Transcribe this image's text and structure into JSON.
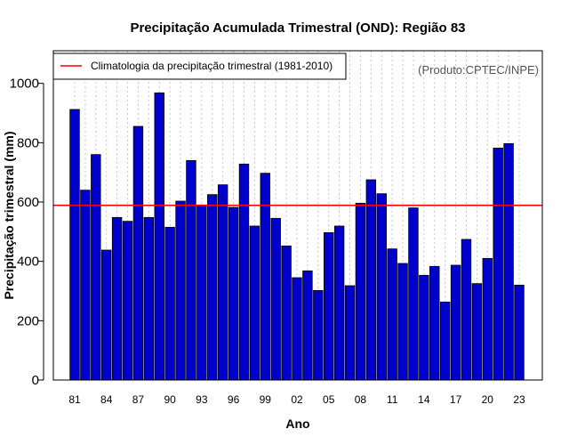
{
  "chart_data": {
    "type": "bar",
    "title": "Precipitação Acumulada Trimestral (OND): Região 83",
    "xlabel": "Ano",
    "ylabel": "Precipitação trimestral (mm)",
    "ylim": [
      0,
      1110
    ],
    "yticks": [
      0,
      200,
      400,
      600,
      800,
      1000
    ],
    "years": [
      1981,
      1982,
      1983,
      1984,
      1985,
      1986,
      1987,
      1988,
      1989,
      1990,
      1991,
      1992,
      1993,
      1994,
      1995,
      1996,
      1997,
      1998,
      1999,
      2000,
      2001,
      2002,
      2003,
      2004,
      2005,
      2006,
      2007,
      2008,
      2009,
      2010,
      2011,
      2012,
      2013,
      2014,
      2015,
      2016,
      2017,
      2018,
      2019,
      2020,
      2021,
      2022,
      2023
    ],
    "xtick_labels": [
      {
        "year": 1981,
        "label": "81"
      },
      {
        "year": 1984,
        "label": "84"
      },
      {
        "year": 1987,
        "label": "87"
      },
      {
        "year": 1990,
        "label": "90"
      },
      {
        "year": 1993,
        "label": "93"
      },
      {
        "year": 1996,
        "label": "96"
      },
      {
        "year": 1999,
        "label": "99"
      },
      {
        "year": 2002,
        "label": "02"
      },
      {
        "year": 2005,
        "label": "05"
      },
      {
        "year": 2008,
        "label": "08"
      },
      {
        "year": 2011,
        "label": "11"
      },
      {
        "year": 2014,
        "label": "14"
      },
      {
        "year": 2017,
        "label": "17"
      },
      {
        "year": 2020,
        "label": "20"
      },
      {
        "year": 2023,
        "label": "23"
      }
    ],
    "values": [
      912,
      640,
      760,
      438,
      548,
      535,
      855,
      548,
      968,
      515,
      603,
      740,
      590,
      625,
      658,
      582,
      728,
      519,
      697,
      545,
      452,
      345,
      368,
      302,
      497,
      519,
      318,
      596,
      675,
      628,
      442,
      393,
      580,
      353,
      383,
      263,
      387,
      474,
      325,
      410,
      782,
      797,
      320
    ],
    "bar_color": "#0000cc",
    "climatology": {
      "label": "Climatologia da precipitação trimestral (1981-2010)",
      "value": 589,
      "color": "#ff0000"
    },
    "legend_position": "top-left",
    "grid": true,
    "annotation": "(Produto:CPTEC/INPE)"
  }
}
